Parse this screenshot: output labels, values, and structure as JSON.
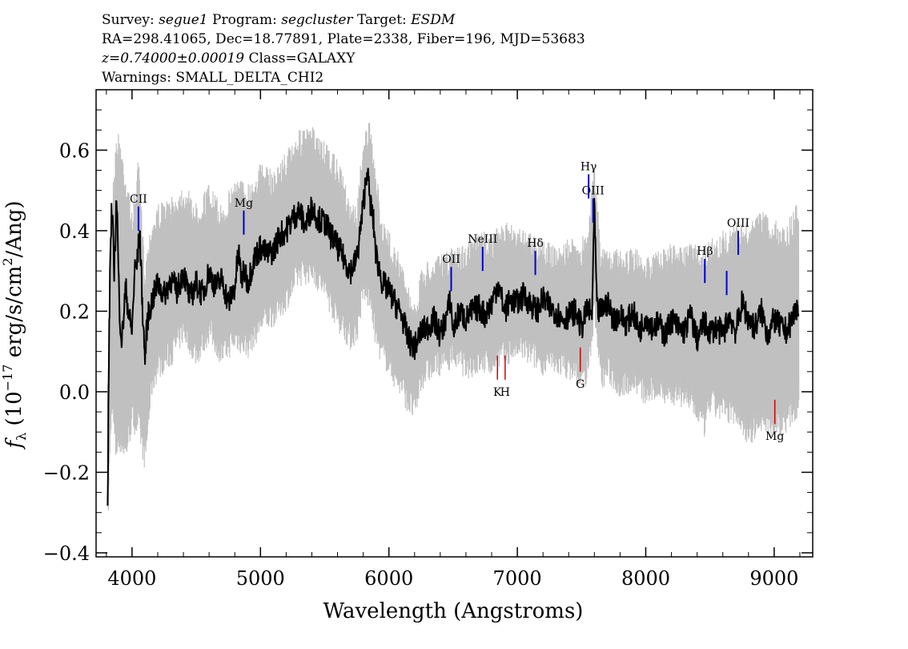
{
  "header": {
    "line1": {
      "survey_label": "Survey:",
      "survey": "segue1",
      "program_label": "Program:",
      "program": "segcluster",
      "target_label": "Target:",
      "target": "ESDM"
    },
    "line2": "RA=298.41065, Dec=18.77891, Plate=2338, Fiber=196, MJD=53683",
    "line3": {
      "z": "z=0.74000±0.00019",
      "class": "Class=GALAXY"
    },
    "line4": "Warnings: SMALL_DELTA_CHI2"
  },
  "chart_data": {
    "type": "line",
    "xlabel": "Wavelength (Angstroms)",
    "ylabel": "f_λ (10^-17 erg/s/cm^2/Ang)",
    "xlim": [
      3720,
      9300
    ],
    "ylim": [
      -0.41,
      0.75
    ],
    "xticks": [
      4000,
      5000,
      6000,
      7000,
      8000,
      9000
    ],
    "yticks": [
      -0.4,
      -0.2,
      0.0,
      0.2,
      0.4,
      0.6
    ],
    "series": [
      {
        "style": "noise-envelope",
        "color": "#c0c0c0",
        "x": [
          3810,
          3840,
          3870,
          3900,
          3950,
          4000,
          4050,
          4100,
          4150,
          4200,
          4300,
          4400,
          4500,
          4600,
          4700,
          4800,
          4900,
          5000,
          5100,
          5200,
          5300,
          5400,
          5500,
          5600,
          5700,
          5750,
          5800,
          5850,
          5900,
          5950,
          6000,
          6050,
          6100,
          6150,
          6200,
          6250,
          6300,
          6400,
          6500,
          6600,
          6700,
          6800,
          6900,
          7000,
          7100,
          7200,
          7300,
          7400,
          7500,
          7550,
          7600,
          7650,
          7700,
          7800,
          7900,
          8000,
          8100,
          8200,
          8300,
          8400,
          8450,
          8500,
          8600,
          8700,
          8800,
          8900,
          9000,
          9100,
          9190
        ],
        "y_upper": [
          0.02,
          0.45,
          0.62,
          0.65,
          0.55,
          0.45,
          0.58,
          0.32,
          0.43,
          0.47,
          0.48,
          0.52,
          0.47,
          0.52,
          0.46,
          0.54,
          0.52,
          0.57,
          0.55,
          0.6,
          0.65,
          0.66,
          0.62,
          0.58,
          0.48,
          0.46,
          0.65,
          0.67,
          0.55,
          0.43,
          0.4,
          0.37,
          0.32,
          0.27,
          0.22,
          0.3,
          0.33,
          0.34,
          0.36,
          0.37,
          0.4,
          0.4,
          0.42,
          0.42,
          0.4,
          0.38,
          0.36,
          0.38,
          0.38,
          0.42,
          0.58,
          0.36,
          0.37,
          0.35,
          0.36,
          0.34,
          0.35,
          0.37,
          0.36,
          0.38,
          0.36,
          0.38,
          0.4,
          0.42,
          0.42,
          0.45,
          0.43,
          0.42,
          0.48
        ],
        "y_lower": [
          -0.35,
          -0.05,
          -0.18,
          -0.15,
          -0.18,
          -0.1,
          -0.12,
          -0.2,
          -0.02,
          0.03,
          0.06,
          0.12,
          0.06,
          0.12,
          0.06,
          0.1,
          0.08,
          0.14,
          0.16,
          0.2,
          0.26,
          0.27,
          0.22,
          0.15,
          0.1,
          0.12,
          0.22,
          0.2,
          0.1,
          0.06,
          0.04,
          0.0,
          -0.02,
          -0.06,
          -0.08,
          0.0,
          0.02,
          0.04,
          0.06,
          0.03,
          0.04,
          0.04,
          0.06,
          0.08,
          0.06,
          0.04,
          0.04,
          0.03,
          0.0,
          0.02,
          0.18,
          0.0,
          0.02,
          -0.02,
          0.0,
          -0.04,
          -0.02,
          -0.04,
          -0.04,
          -0.08,
          -0.12,
          -0.06,
          -0.08,
          -0.08,
          -0.14,
          -0.1,
          -0.12,
          -0.1,
          -0.06
        ]
      },
      {
        "style": "flux",
        "color": "#000000",
        "x": [
          3810,
          3820,
          3830,
          3840,
          3850,
          3860,
          3870,
          3880,
          3900,
          3920,
          3950,
          3980,
          4000,
          4020,
          4040,
          4060,
          4080,
          4100,
          4120,
          4150,
          4200,
          4250,
          4300,
          4350,
          4400,
          4450,
          4500,
          4550,
          4600,
          4650,
          4700,
          4750,
          4800,
          4830,
          4850,
          4880,
          4900,
          4950,
          5000,
          5050,
          5100,
          5150,
          5200,
          5250,
          5300,
          5350,
          5400,
          5450,
          5500,
          5550,
          5600,
          5650,
          5700,
          5750,
          5800,
          5830,
          5850,
          5880,
          5900,
          5950,
          6000,
          6050,
          6100,
          6150,
          6200,
          6250,
          6300,
          6350,
          6400,
          6450,
          6480,
          6500,
          6550,
          6600,
          6650,
          6700,
          6750,
          6800,
          6850,
          6900,
          6950,
          7000,
          7050,
          7100,
          7150,
          7200,
          7250,
          7300,
          7350,
          7400,
          7450,
          7500,
          7550,
          7580,
          7600,
          7620,
          7650,
          7700,
          7750,
          7800,
          7850,
          7900,
          7950,
          8000,
          8050,
          8100,
          8150,
          8200,
          8250,
          8300,
          8350,
          8400,
          8450,
          8500,
          8550,
          8600,
          8650,
          8700,
          8750,
          8800,
          8850,
          8900,
          8950,
          9000,
          9050,
          9100,
          9150,
          9190
        ],
        "y": [
          -0.29,
          0.1,
          0.33,
          0.45,
          0.4,
          0.3,
          0.38,
          0.5,
          0.22,
          0.12,
          0.26,
          0.18,
          0.15,
          0.3,
          0.32,
          0.4,
          0.22,
          0.08,
          0.18,
          0.22,
          0.27,
          0.24,
          0.28,
          0.25,
          0.3,
          0.23,
          0.27,
          0.24,
          0.3,
          0.26,
          0.28,
          0.22,
          0.26,
          0.35,
          0.28,
          0.3,
          0.27,
          0.33,
          0.36,
          0.34,
          0.35,
          0.39,
          0.4,
          0.43,
          0.45,
          0.41,
          0.46,
          0.43,
          0.42,
          0.39,
          0.36,
          0.33,
          0.3,
          0.33,
          0.46,
          0.56,
          0.48,
          0.42,
          0.34,
          0.27,
          0.25,
          0.22,
          0.19,
          0.13,
          0.11,
          0.15,
          0.16,
          0.18,
          0.14,
          0.19,
          0.23,
          0.15,
          0.2,
          0.18,
          0.2,
          0.21,
          0.19,
          0.22,
          0.27,
          0.2,
          0.23,
          0.22,
          0.24,
          0.22,
          0.2,
          0.23,
          0.21,
          0.2,
          0.18,
          0.19,
          0.2,
          0.16,
          0.21,
          0.18,
          0.46,
          0.2,
          0.2,
          0.22,
          0.18,
          0.19,
          0.17,
          0.2,
          0.15,
          0.19,
          0.16,
          0.17,
          0.14,
          0.18,
          0.16,
          0.15,
          0.19,
          0.13,
          0.17,
          0.15,
          0.16,
          0.14,
          0.19,
          0.15,
          0.22,
          0.18,
          0.16,
          0.2,
          0.14,
          0.18,
          0.16,
          0.15,
          0.19,
          0.22
        ]
      }
    ],
    "emission_lines": [
      {
        "label": "CII",
        "x": 4050,
        "y1": 0.4,
        "y2": 0.46
      },
      {
        "label": "Mg",
        "x": 4870,
        "y1": 0.39,
        "y2": 0.45
      },
      {
        "label": "OII",
        "x": 6485,
        "y1": 0.25,
        "y2": 0.31
      },
      {
        "label": "NeIII",
        "x": 6730,
        "y1": 0.3,
        "y2": 0.36
      },
      {
        "label": "Hδ",
        "x": 7140,
        "y1": 0.29,
        "y2": 0.35
      },
      {
        "label": "Hγ",
        "x": 7555,
        "y1": 0.48,
        "y2": 0.54
      },
      {
        "label": "OIII",
        "x": 7590,
        "y1": 0.42,
        "y2": 0.48
      },
      {
        "label": "Hβ",
        "x": 8460,
        "y1": 0.27,
        "y2": 0.33
      },
      {
        "label": "",
        "x": 8630,
        "y1": 0.24,
        "y2": 0.3
      },
      {
        "label": "OIII",
        "x": 8720,
        "y1": 0.34,
        "y2": 0.4
      }
    ],
    "absorption_lines": [
      {
        "label": "K",
        "x": 6845,
        "y1": 0.03,
        "y2": 0.09
      },
      {
        "label": "H",
        "x": 6905,
        "y1": 0.03,
        "y2": 0.09
      },
      {
        "label": "G",
        "x": 7490,
        "y1": 0.05,
        "y2": 0.11
      },
      {
        "label": "Mg",
        "x": 9005,
        "y1": -0.08,
        "y2": -0.02
      }
    ],
    "colors": {
      "emission": "#0000cc",
      "absorption": "#cc0000",
      "noise": "#c0c0c0",
      "flux": "#000000"
    }
  }
}
